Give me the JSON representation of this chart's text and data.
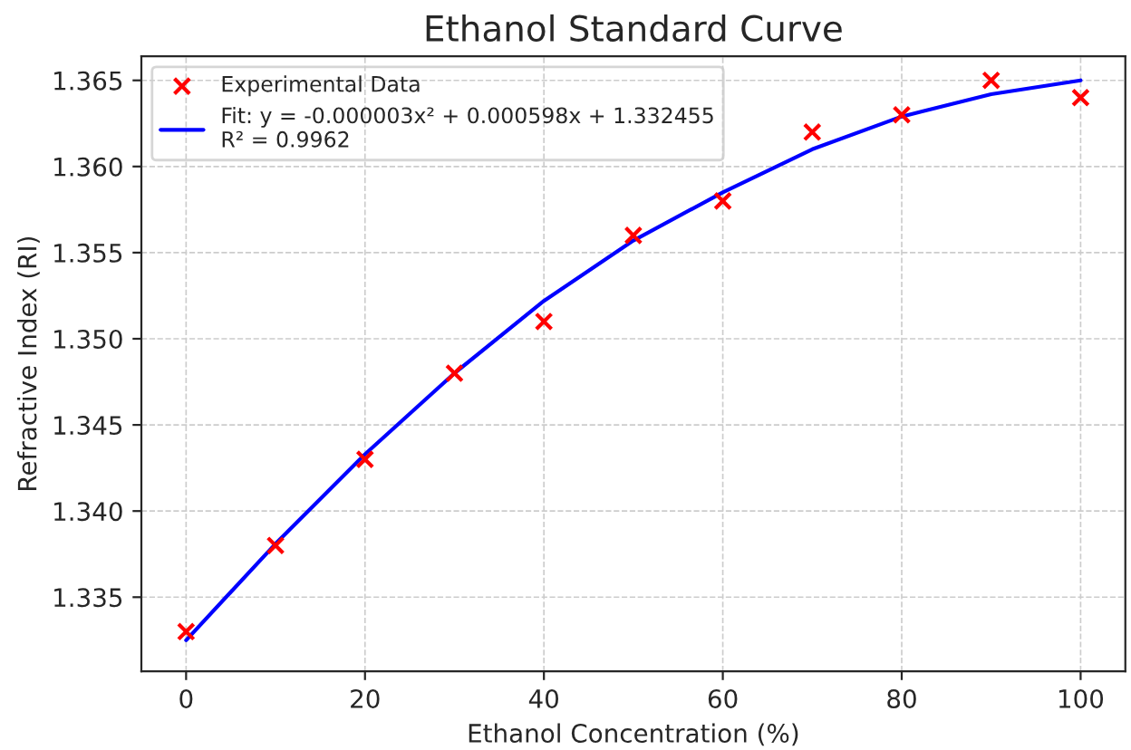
{
  "chart_data": {
    "type": "scatter",
    "title": "Ethanol Standard Curve",
    "xlabel": "Ethanol Concentration (%)",
    "ylabel": "Refractive Index (RI)",
    "x": [
      0,
      10,
      20,
      30,
      40,
      50,
      60,
      70,
      80,
      90,
      100
    ],
    "series": [
      {
        "name": "Experimental Data",
        "marker": "cross",
        "color": "#ff0000",
        "values": [
          1.333,
          1.338,
          1.343,
          1.348,
          1.351,
          1.356,
          1.358,
          1.362,
          1.363,
          1.365,
          1.364
        ]
      },
      {
        "name": "Fit: y = -0.000003x² + 0.000598x + 1.332455\nR² = 0.9962",
        "type": "line",
        "marker": "none",
        "line_style": "solid",
        "color": "#0000ff",
        "values": [
          1.3325,
          1.3381,
          1.3433,
          1.348,
          1.3522,
          1.3557,
          1.3585,
          1.361,
          1.3629,
          1.3642,
          1.365
        ]
      }
    ],
    "xlim": [
      -5,
      105
    ],
    "ylim": [
      1.3307,
      1.3664
    ],
    "xticks": [
      0,
      20,
      40,
      60,
      80,
      100
    ],
    "yticks": [
      {
        "value": 1.335,
        "label": "1.335"
      },
      {
        "value": 1.34,
        "label": "1.340"
      },
      {
        "value": 1.345,
        "label": "1.345"
      },
      {
        "value": 1.35,
        "label": "1.350"
      },
      {
        "value": 1.355,
        "label": "1.355"
      },
      {
        "value": 1.36,
        "label": "1.360"
      },
      {
        "value": 1.365,
        "label": "1.365"
      }
    ],
    "grid": true,
    "legend": "top left"
  }
}
